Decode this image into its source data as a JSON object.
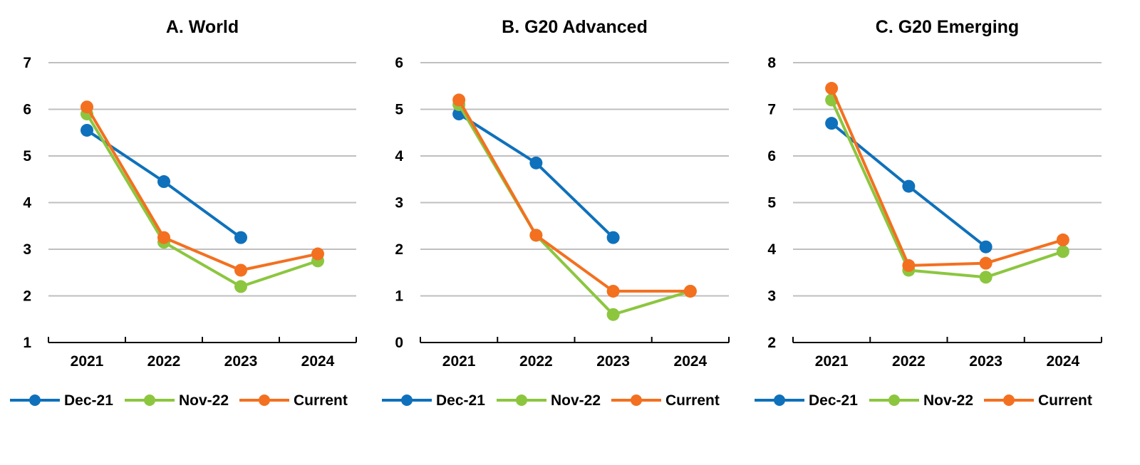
{
  "colors": {
    "Dec-21": "#0f71bb",
    "Nov-22": "#8cc63f",
    "Current": "#f37020",
    "grid": "#bfbfbf"
  },
  "chart_data": [
    {
      "type": "line",
      "title": "A. World",
      "categories": [
        "2021",
        "2022",
        "2023",
        "2024"
      ],
      "ylim": [
        1,
        7
      ],
      "yticks": [
        1,
        2,
        3,
        4,
        5,
        6,
        7
      ],
      "grid": true,
      "legend": "bottom",
      "series": [
        {
          "name": "Dec-21",
          "values": [
            5.55,
            4.45,
            3.25,
            null
          ]
        },
        {
          "name": "Nov-22",
          "values": [
            5.9,
            3.15,
            2.2,
            2.75
          ]
        },
        {
          "name": "Current",
          "values": [
            6.05,
            3.25,
            2.55,
            2.9
          ]
        }
      ]
    },
    {
      "type": "line",
      "title": "B. G20 Advanced",
      "categories": [
        "2021",
        "2022",
        "2023",
        "2024"
      ],
      "ylim": [
        0,
        6
      ],
      "yticks": [
        0,
        1,
        2,
        3,
        4,
        5,
        6
      ],
      "grid": true,
      "legend": "bottom",
      "series": [
        {
          "name": "Dec-21",
          "values": [
            4.9,
            3.85,
            2.25,
            null
          ]
        },
        {
          "name": "Nov-22",
          "values": [
            5.1,
            2.3,
            0.6,
            1.1
          ]
        },
        {
          "name": "Current",
          "values": [
            5.2,
            2.3,
            1.1,
            1.1
          ]
        }
      ]
    },
    {
      "type": "line",
      "title": "C. G20 Emerging",
      "categories": [
        "2021",
        "2022",
        "2023",
        "2024"
      ],
      "ylim": [
        2,
        8
      ],
      "yticks": [
        2,
        3,
        4,
        5,
        6,
        7,
        8
      ],
      "grid": true,
      "legend": "bottom",
      "series": [
        {
          "name": "Dec-21",
          "values": [
            6.7,
            5.35,
            4.05,
            null
          ]
        },
        {
          "name": "Nov-22",
          "values": [
            7.2,
            3.55,
            3.4,
            3.95
          ]
        },
        {
          "name": "Current",
          "values": [
            7.45,
            3.65,
            3.7,
            4.2
          ]
        }
      ]
    }
  ]
}
